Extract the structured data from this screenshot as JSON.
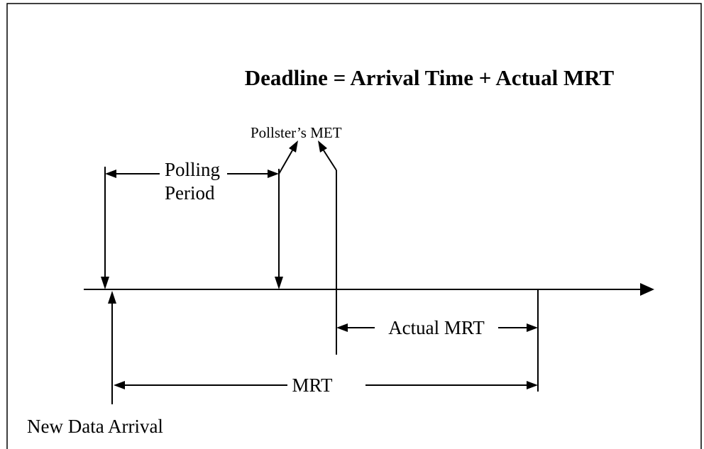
{
  "title": "Deadline = Arrival Time + Actual MRT",
  "labels": {
    "pollster_met": "Pollster’s MET",
    "polling": "Polling",
    "period": "Period",
    "actual_mrt": "Actual MRT",
    "mrt": "MRT",
    "new_data_arrival": "New Data Arrival"
  }
}
